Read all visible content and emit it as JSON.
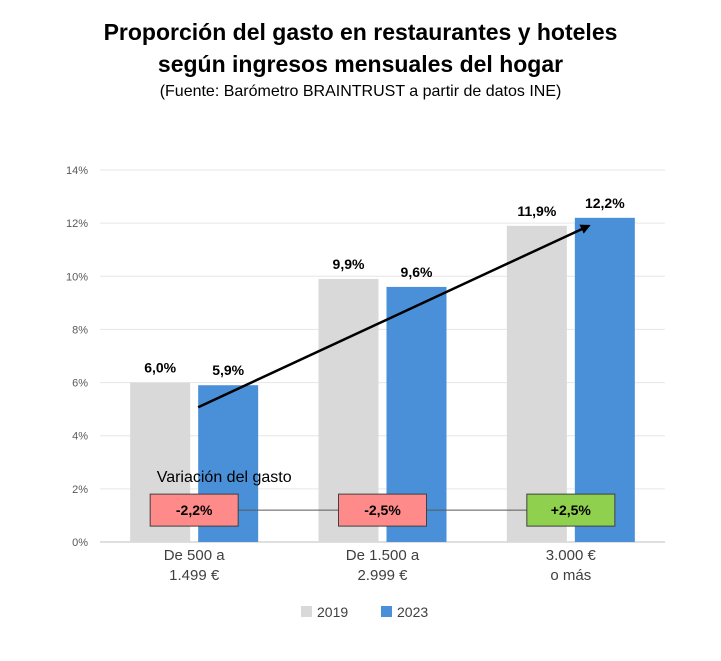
{
  "title_line1": "Proporción del gasto en restaurantes y hoteles",
  "title_line2": "según ingresos mensuales del hogar",
  "subtitle": "(Fuente: Barómetro BRAINTRUST a partir de datos INE)",
  "chart_data": {
    "type": "bar",
    "categories": [
      [
        "De 500 a",
        "1.499 €"
      ],
      [
        "De 1.500 a",
        "2.999 €"
      ],
      [
        "3.000 €",
        "o más"
      ]
    ],
    "series": [
      {
        "name": "2019",
        "values": [
          6.0,
          9.9,
          11.9
        ],
        "labels": [
          "6,0%",
          "9,9%",
          "11,9%"
        ],
        "color": "#d9d9d9"
      },
      {
        "name": "2023",
        "values": [
          5.9,
          9.6,
          12.2
        ],
        "labels": [
          "5,9%",
          "9,6%",
          "12,2%"
        ],
        "color": "#4a90d9"
      }
    ],
    "ylim": [
      0,
      14
    ],
    "yticks": [
      0,
      2,
      4,
      6,
      8,
      10,
      12,
      14
    ],
    "ytick_labels": [
      "0%",
      "2%",
      "4%",
      "6%",
      "8%",
      "10%",
      "12%",
      "14%"
    ],
    "grid": true,
    "legend_position": "bottom",
    "trend_arrow": true,
    "annotation": {
      "title": "Variación del gasto",
      "values": [
        -2.2,
        -2.5,
        2.5
      ],
      "labels": [
        "-2,2%",
        "-2,5%",
        "+2,5%"
      ],
      "colors": [
        "#ff8a8a",
        "#ff8a8a",
        "#8fd14f"
      ]
    }
  }
}
